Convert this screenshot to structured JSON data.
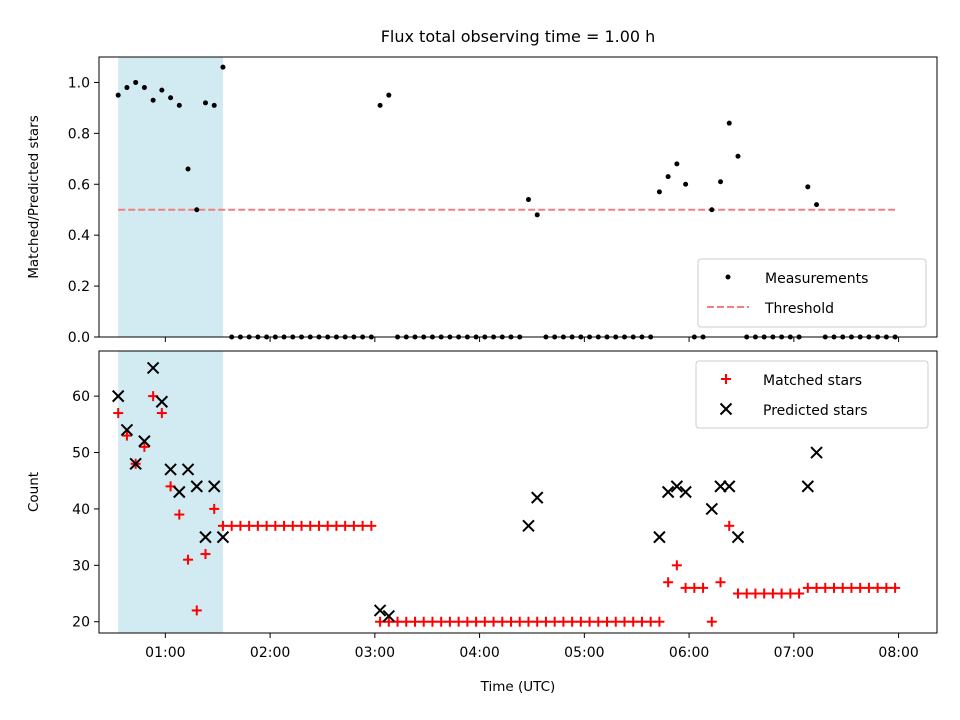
{
  "chart_data": [
    {
      "type": "scatter",
      "title": "Flux total observing time = 1.00 h",
      "xlabel": "",
      "ylabel": "Matched/Predicted stars",
      "x_unit": "time (UTC, hours)",
      "xlim": [
        "00:22",
        "08:22"
      ],
      "ylim": [
        0,
        1.1
      ],
      "yticks": [
        "0.0",
        "0.2",
        "0.4",
        "0.6",
        "0.8",
        "1.0"
      ],
      "highlight_span": {
        "from": "00:33",
        "to": "01:33",
        "color": "#add8e6"
      },
      "legend_position": "lower-right",
      "series": [
        {
          "name": "Measurements",
          "kind": "points",
          "color": "#000000",
          "points": [
            [
              "00:33",
              0.95
            ],
            [
              "00:38",
              0.98
            ],
            [
              "00:43",
              1.0
            ],
            [
              "00:48",
              0.98
            ],
            [
              "00:53",
              0.93
            ],
            [
              "00:58",
              0.97
            ],
            [
              "01:03",
              0.94
            ],
            [
              "01:08",
              0.91
            ],
            [
              "01:13",
              0.66
            ],
            [
              "01:18",
              0.5
            ],
            [
              "01:23",
              0.92
            ],
            [
              "01:28",
              0.91
            ],
            [
              "01:33",
              1.06
            ],
            [
              "01:38",
              0
            ],
            [
              "01:43",
              0
            ],
            [
              "01:48",
              0
            ],
            [
              "01:53",
              0
            ],
            [
              "01:58",
              0
            ],
            [
              "02:03",
              0
            ],
            [
              "02:08",
              0
            ],
            [
              "02:13",
              0
            ],
            [
              "02:18",
              0
            ],
            [
              "02:23",
              0
            ],
            [
              "02:28",
              0
            ],
            [
              "02:33",
              0
            ],
            [
              "02:38",
              0
            ],
            [
              "02:43",
              0
            ],
            [
              "02:48",
              0
            ],
            [
              "02:53",
              0
            ],
            [
              "02:58",
              0
            ],
            [
              "03:03",
              0.91
            ],
            [
              "03:08",
              0.95
            ],
            [
              "03:13",
              0
            ],
            [
              "03:18",
              0
            ],
            [
              "03:23",
              0
            ],
            [
              "03:28",
              0
            ],
            [
              "03:33",
              0
            ],
            [
              "03:38",
              0
            ],
            [
              "03:43",
              0
            ],
            [
              "03:48",
              0
            ],
            [
              "03:53",
              0
            ],
            [
              "03:58",
              0
            ],
            [
              "04:03",
              0
            ],
            [
              "04:08",
              0
            ],
            [
              "04:13",
              0
            ],
            [
              "04:18",
              0
            ],
            [
              "04:23",
              0
            ],
            [
              "04:28",
              0.54
            ],
            [
              "04:33",
              0.48
            ],
            [
              "04:38",
              0
            ],
            [
              "04:43",
              0
            ],
            [
              "04:48",
              0
            ],
            [
              "04:53",
              0
            ],
            [
              "04:58",
              0
            ],
            [
              "05:03",
              0
            ],
            [
              "05:08",
              0
            ],
            [
              "05:13",
              0
            ],
            [
              "05:18",
              0
            ],
            [
              "05:23",
              0
            ],
            [
              "05:28",
              0
            ],
            [
              "05:33",
              0
            ],
            [
              "05:38",
              0
            ],
            [
              "05:43",
              0.57
            ],
            [
              "05:48",
              0.63
            ],
            [
              "05:53",
              0.68
            ],
            [
              "05:58",
              0.6
            ],
            [
              "06:03",
              0
            ],
            [
              "06:08",
              0
            ],
            [
              "06:13",
              0.5
            ],
            [
              "06:18",
              0.61
            ],
            [
              "06:23",
              0.84
            ],
            [
              "06:28",
              0.71
            ],
            [
              "06:33",
              0
            ],
            [
              "06:38",
              0
            ],
            [
              "06:43",
              0
            ],
            [
              "06:48",
              0
            ],
            [
              "06:53",
              0
            ],
            [
              "06:58",
              0
            ],
            [
              "07:03",
              0
            ],
            [
              "07:08",
              0.59
            ],
            [
              "07:13",
              0.52
            ],
            [
              "07:18",
              0
            ],
            [
              "07:23",
              0
            ],
            [
              "07:28",
              0
            ],
            [
              "07:33",
              0
            ],
            [
              "07:38",
              0
            ],
            [
              "07:43",
              0
            ],
            [
              "07:48",
              0
            ],
            [
              "07:53",
              0
            ],
            [
              "07:58",
              0
            ]
          ]
        },
        {
          "name": "Threshold",
          "kind": "dashed-line",
          "color": "#f08080",
          "points": [
            [
              "00:33",
              0.5
            ],
            [
              "07:58",
              0.5
            ]
          ]
        }
      ]
    },
    {
      "type": "scatter",
      "title": "",
      "xlabel": "Time (UTC)",
      "ylabel": "Count",
      "x_unit": "time (UTC, hours)",
      "xlim": [
        "00:22",
        "08:22"
      ],
      "ylim": [
        18,
        68
      ],
      "xticks": [
        "01:00",
        "02:00",
        "03:00",
        "04:00",
        "05:00",
        "06:00",
        "07:00",
        "08:00"
      ],
      "yticks": [
        "20",
        "30",
        "40",
        "50",
        "60"
      ],
      "highlight_span": {
        "from": "00:33",
        "to": "01:33",
        "color": "#add8e6"
      },
      "legend_position": "upper-right",
      "series": [
        {
          "name": "Matched stars",
          "kind": "plus",
          "color": "#ff0000",
          "points": [
            [
              "00:33",
              57
            ],
            [
              "00:38",
              53
            ],
            [
              "00:43",
              48
            ],
            [
              "00:48",
              51
            ],
            [
              "00:53",
              60
            ],
            [
              "00:58",
              57
            ],
            [
              "01:03",
              44
            ],
            [
              "01:08",
              39
            ],
            [
              "01:13",
              31
            ],
            [
              "01:18",
              22
            ],
            [
              "01:23",
              32
            ],
            [
              "01:28",
              40
            ],
            [
              "01:33",
              37
            ],
            [
              "01:38",
              37
            ],
            [
              "01:43",
              37
            ],
            [
              "01:48",
              37
            ],
            [
              "01:53",
              37
            ],
            [
              "01:58",
              37
            ],
            [
              "02:03",
              37
            ],
            [
              "02:08",
              37
            ],
            [
              "02:13",
              37
            ],
            [
              "02:18",
              37
            ],
            [
              "02:23",
              37
            ],
            [
              "02:28",
              37
            ],
            [
              "02:33",
              37
            ],
            [
              "02:38",
              37
            ],
            [
              "02:43",
              37
            ],
            [
              "02:48",
              37
            ],
            [
              "02:53",
              37
            ],
            [
              "02:58",
              37
            ],
            [
              "03:03",
              20
            ],
            [
              "03:08",
              20
            ],
            [
              "03:13",
              20
            ],
            [
              "03:18",
              20
            ],
            [
              "03:23",
              20
            ],
            [
              "03:28",
              20
            ],
            [
              "03:33",
              20
            ],
            [
              "03:38",
              20
            ],
            [
              "03:43",
              20
            ],
            [
              "03:48",
              20
            ],
            [
              "03:53",
              20
            ],
            [
              "03:58",
              20
            ],
            [
              "04:03",
              20
            ],
            [
              "04:08",
              20
            ],
            [
              "04:13",
              20
            ],
            [
              "04:18",
              20
            ],
            [
              "04:23",
              20
            ],
            [
              "04:28",
              20
            ],
            [
              "04:33",
              20
            ],
            [
              "04:38",
              20
            ],
            [
              "04:43",
              20
            ],
            [
              "04:48",
              20
            ],
            [
              "04:53",
              20
            ],
            [
              "04:58",
              20
            ],
            [
              "05:03",
              20
            ],
            [
              "05:08",
              20
            ],
            [
              "05:13",
              20
            ],
            [
              "05:18",
              20
            ],
            [
              "05:23",
              20
            ],
            [
              "05:28",
              20
            ],
            [
              "05:33",
              20
            ],
            [
              "05:38",
              20
            ],
            [
              "05:43",
              20
            ],
            [
              "05:48",
              27
            ],
            [
              "05:53",
              30
            ],
            [
              "05:58",
              26
            ],
            [
              "06:03",
              26
            ],
            [
              "06:08",
              26
            ],
            [
              "06:13",
              20
            ],
            [
              "06:18",
              27
            ],
            [
              "06:23",
              37
            ],
            [
              "06:28",
              25
            ],
            [
              "06:33",
              25
            ],
            [
              "06:38",
              25
            ],
            [
              "06:43",
              25
            ],
            [
              "06:48",
              25
            ],
            [
              "06:53",
              25
            ],
            [
              "06:58",
              25
            ],
            [
              "07:03",
              25
            ],
            [
              "07:08",
              26
            ],
            [
              "07:13",
              26
            ],
            [
              "07:18",
              26
            ],
            [
              "07:23",
              26
            ],
            [
              "07:28",
              26
            ],
            [
              "07:33",
              26
            ],
            [
              "07:38",
              26
            ],
            [
              "07:43",
              26
            ],
            [
              "07:48",
              26
            ],
            [
              "07:53",
              26
            ],
            [
              "07:58",
              26
            ]
          ]
        },
        {
          "name": "Predicted stars",
          "kind": "cross",
          "color": "#000000",
          "points": [
            [
              "00:33",
              60
            ],
            [
              "00:38",
              54
            ],
            [
              "00:43",
              48
            ],
            [
              "00:48",
              52
            ],
            [
              "00:53",
              65
            ],
            [
              "00:58",
              59
            ],
            [
              "01:03",
              47
            ],
            [
              "01:08",
              43
            ],
            [
              "01:13",
              47
            ],
            [
              "01:18",
              44
            ],
            [
              "01:23",
              35
            ],
            [
              "01:28",
              44
            ],
            [
              "01:33",
              35
            ],
            [
              "03:03",
              22
            ],
            [
              "03:08",
              21
            ],
            [
              "04:28",
              37
            ],
            [
              "04:33",
              42
            ],
            [
              "05:43",
              35
            ],
            [
              "05:48",
              43
            ],
            [
              "05:53",
              44
            ],
            [
              "05:58",
              43
            ],
            [
              "06:13",
              40
            ],
            [
              "06:18",
              44
            ],
            [
              "06:23",
              44
            ],
            [
              "06:28",
              35
            ],
            [
              "07:08",
              44
            ],
            [
              "07:13",
              50
            ]
          ]
        }
      ]
    }
  ]
}
